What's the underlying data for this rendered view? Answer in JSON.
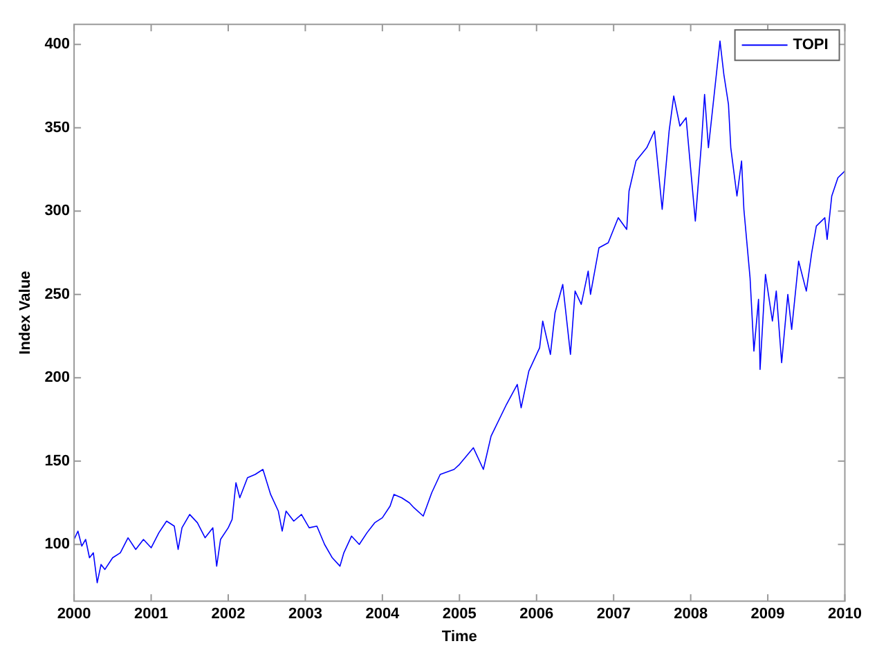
{
  "chart_data": {
    "type": "line",
    "xlabel": "Time",
    "ylabel": "Index Value",
    "legend": "top right",
    "grid": false,
    "xlim": [
      2000,
      2010
    ],
    "xticks": [
      2000,
      2001,
      2002,
      2003,
      2004,
      2005,
      2006,
      2007,
      2008,
      2009,
      2010
    ],
    "ylim": [
      66,
      412
    ],
    "yticks": [
      100,
      150,
      200,
      250,
      300,
      350,
      400
    ],
    "series": [
      {
        "name": "TOPI",
        "color": "#0000ff",
        "x": [
          2000.0,
          2000.05,
          2000.1,
          2000.15,
          2000.2,
          2000.25,
          2000.3,
          2000.35,
          2000.4,
          2000.5,
          2000.6,
          2000.7,
          2000.8,
          2000.9,
          2001.0,
          2001.1,
          2001.2,
          2001.3,
          2001.35,
          2001.4,
          2001.5,
          2001.6,
          2001.7,
          2001.8,
          2001.85,
          2001.9,
          2002.0,
          2002.05,
          2002.1,
          2002.15,
          2002.25,
          2002.35,
          2002.45,
          2002.55,
          2002.65,
          2002.7,
          2002.75,
          2002.85,
          2002.95,
          2003.05,
          2003.15,
          2003.25,
          2003.35,
          2003.45,
          2003.5,
          2003.6,
          2003.7,
          2003.8,
          2003.9,
          2004.0,
          2004.1,
          2004.15,
          2004.25,
          2004.35,
          2004.41,
          2004.53,
          2004.64,
          2004.75,
          2004.93,
          2005.0,
          2005.18,
          2005.31,
          2005.41,
          2005.61,
          2005.75,
          2005.8,
          2005.9,
          2006.04,
          2006.08,
          2006.18,
          2006.24,
          2006.34,
          2006.44,
          2006.5,
          2006.58,
          2006.67,
          2006.7,
          2006.81,
          2006.93,
          2007.06,
          2007.17,
          2007.2,
          2007.29,
          2007.43,
          2007.53,
          2007.63,
          2007.72,
          2007.78,
          2007.86,
          2007.94,
          2008.06,
          2008.14,
          2008.18,
          2008.23,
          2008.34,
          2008.38,
          2008.43,
          2008.49,
          2008.52,
          2008.6,
          2008.66,
          2008.69,
          2008.77,
          2008.82,
          2008.88,
          2008.9,
          2008.97,
          2009.06,
          2009.11,
          2009.18,
          2009.26,
          2009.31,
          2009.4,
          2009.5,
          2009.57,
          2009.63,
          2009.74,
          2009.77,
          2009.83,
          2009.91,
          2010.0
        ],
        "values": [
          103,
          108,
          99,
          103,
          92,
          95,
          77,
          88,
          85,
          92,
          95,
          104,
          97,
          103,
          98,
          107,
          114,
          111,
          97,
          110,
          118,
          113,
          104,
          110,
          87,
          103,
          110,
          115,
          137,
          128,
          140,
          142,
          145,
          130,
          120,
          108,
          120,
          114,
          118,
          110,
          111,
          100,
          92,
          87,
          95,
          105,
          100,
          107,
          113,
          116,
          123,
          130,
          128,
          125,
          122,
          117,
          131,
          142,
          145,
          148,
          158,
          145,
          165,
          184,
          196,
          182,
          204,
          218,
          234,
          214,
          239,
          256,
          214,
          252,
          244,
          264,
          250,
          278,
          281,
          296,
          289,
          312,
          330,
          338,
          348,
          301,
          348,
          369,
          351,
          356,
          294,
          341,
          370,
          338,
          385,
          402,
          382,
          364,
          338,
          309,
          330,
          301,
          260,
          216,
          247,
          205,
          262,
          234,
          252,
          209,
          250,
          229,
          270,
          252,
          275,
          291,
          296,
          283,
          309,
          320,
          324
        ]
      }
    ]
  }
}
